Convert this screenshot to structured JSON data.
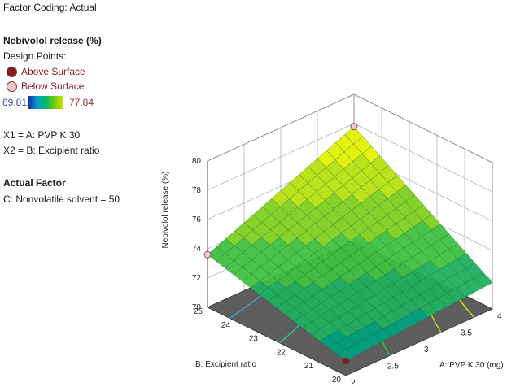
{
  "panel": {
    "factor_coding": "Factor Coding: Actual",
    "response_title": "Nebivolol release (%)",
    "design_points_label": "Design Points:",
    "above_surface": "Above Surface",
    "below_surface": "Below Surface",
    "range_min": "69.81",
    "range_max": "77.84",
    "x1_def": "X1 = A: PVP K 30",
    "x2_def": "X2 = B: Excipient ratio",
    "actual_factor_title": "Actual Factor",
    "actual_factor_value": "C: Nonvolatile solvent  = 50",
    "colors": {
      "above": "#8b1a1a",
      "below": "#f2c8c8",
      "min_text": "#3a4aa0",
      "max_text": "#a03030"
    }
  },
  "chart_data": {
    "type": "surface",
    "title": "",
    "xlabel": "A: PVP K 30 (mg)",
    "ylabel": "B: Excipient ratio",
    "zlabel": "Nebivolol release (%)",
    "xlim": [
      2,
      4
    ],
    "ylim": [
      20,
      25
    ],
    "zlim": [
      70,
      80
    ],
    "x_ticks": [
      "2",
      "2.5",
      "3",
      "3.5",
      "4"
    ],
    "y_ticks": [
      "20",
      "21",
      "22",
      "23",
      "24",
      "25"
    ],
    "z_ticks": [
      "70",
      "72",
      "74",
      "76",
      "78",
      "80"
    ],
    "corners": [
      {
        "x": 2,
        "y": 20,
        "z": 71.0
      },
      {
        "x": 4,
        "y": 20,
        "z": 71.8
      },
      {
        "x": 2,
        "y": 25,
        "z": 73.6
      },
      {
        "x": 4,
        "y": 25,
        "z": 77.8
      }
    ],
    "design_points": [
      {
        "x": 2,
        "y": 25,
        "z": 73.6,
        "type": "below"
      },
      {
        "x": 4,
        "y": 25,
        "z": 77.8,
        "type": "below"
      },
      {
        "x": 2,
        "y": 20,
        "z": 71.0,
        "type": "above"
      }
    ],
    "grid": true
  }
}
